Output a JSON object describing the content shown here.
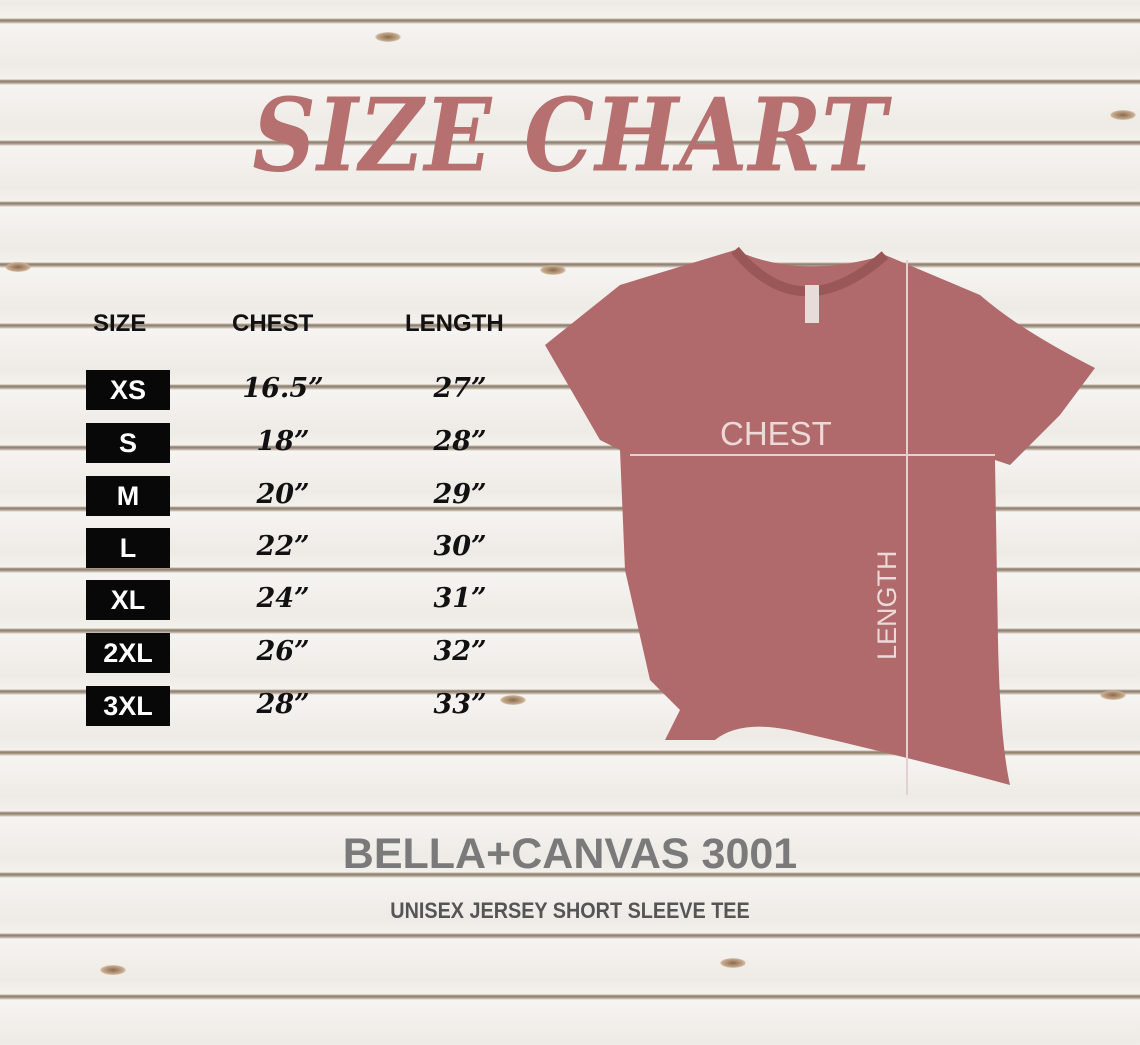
{
  "title": "SIZE CHART",
  "table": {
    "headers": [
      "SIZE",
      "CHEST",
      "LENGTH"
    ],
    "rows": [
      {
        "size": "XS",
        "chest": "16.5”",
        "length": "27”"
      },
      {
        "size": "S",
        "chest": "18”",
        "length": "28”"
      },
      {
        "size": "M",
        "chest": "20”",
        "length": "29”"
      },
      {
        "size": "L",
        "chest": "22”",
        "length": "30”"
      },
      {
        "size": "XL",
        "chest": "24”",
        "length": "31”"
      },
      {
        "size": "2XL",
        "chest": "26”",
        "length": "32”"
      },
      {
        "size": "3XL",
        "chest": "28”",
        "length": "33”"
      }
    ]
  },
  "shirt": {
    "chest_label": "CHEST",
    "length_label": "LENGTH",
    "color": "#b06a6c"
  },
  "brand": {
    "name": "BELLA+CANVAS 3001",
    "subtitle": "UNISEX JERSEY SHORT SLEEVE TEE"
  },
  "colors": {
    "title": "#b5706f",
    "brand": "#7a7a7a"
  }
}
